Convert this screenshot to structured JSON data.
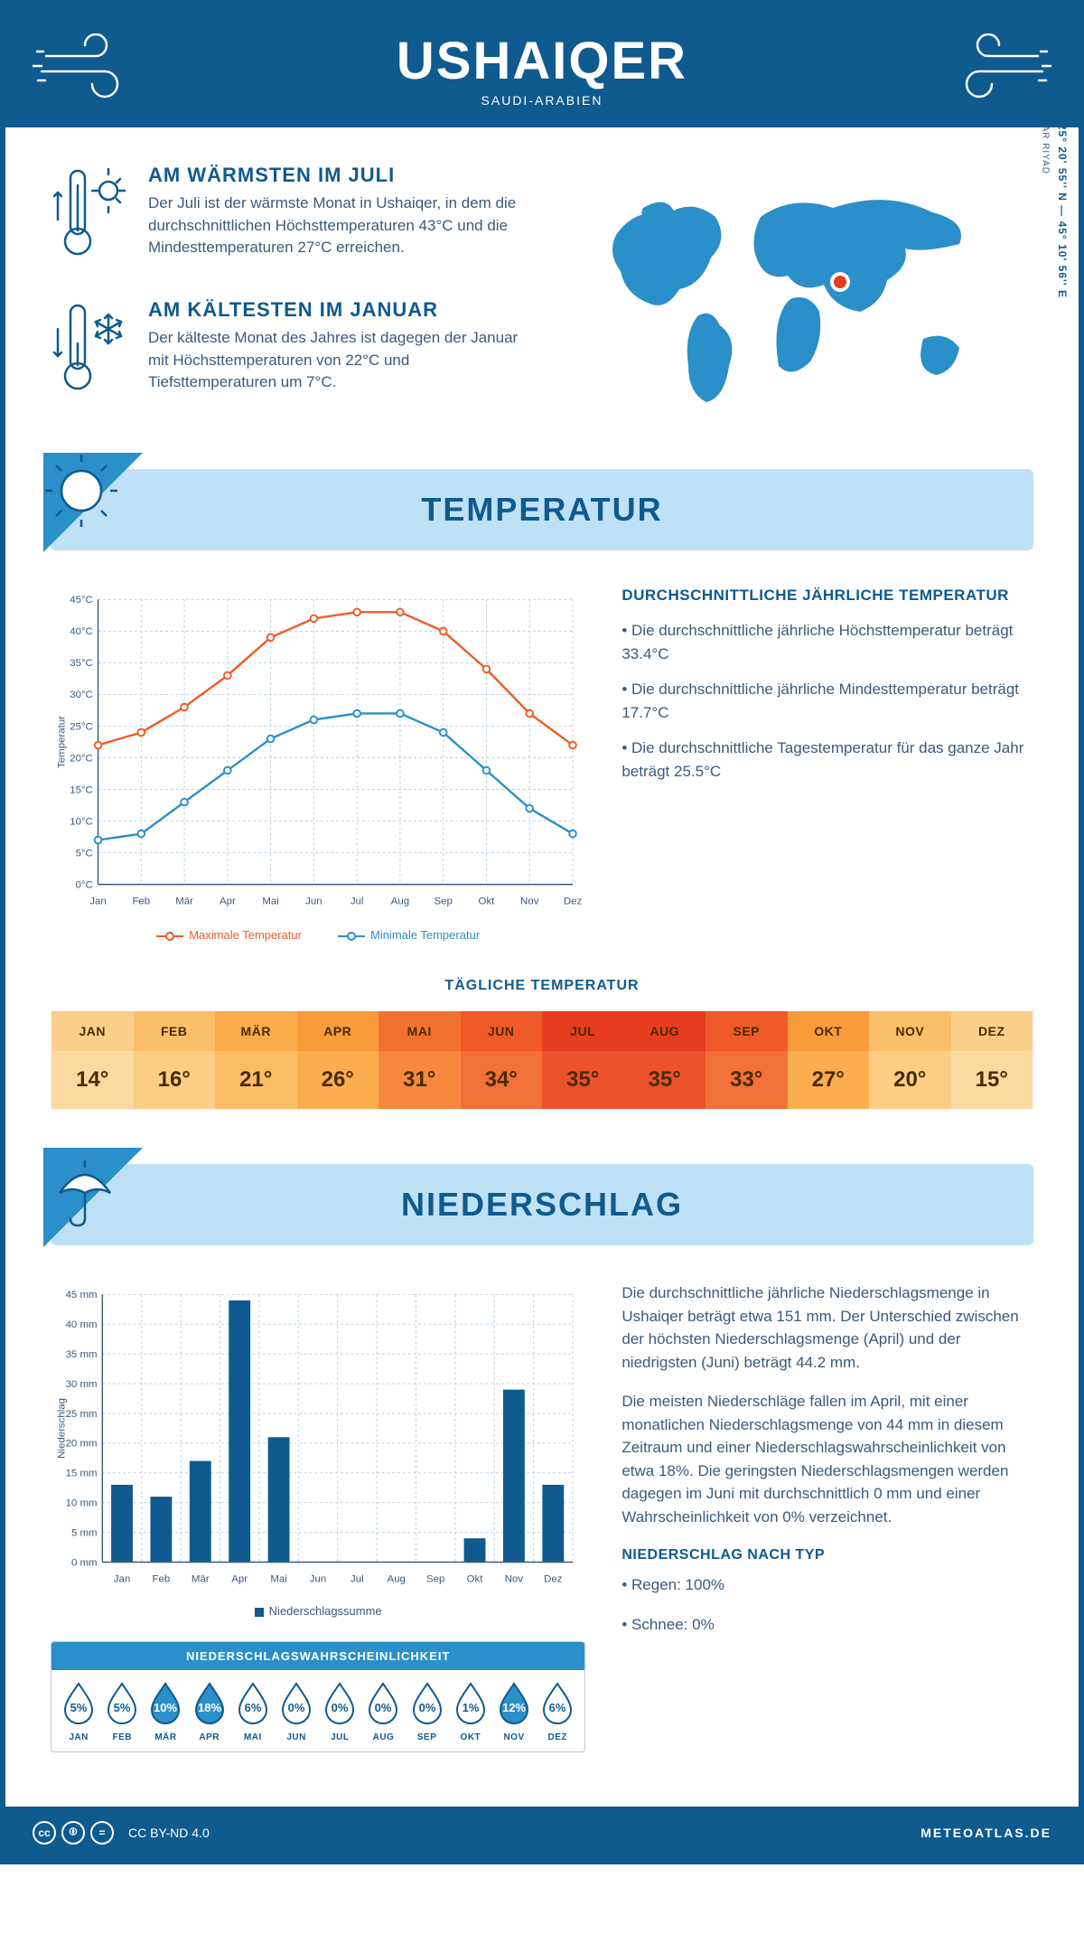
{
  "header": {
    "title": "USHAIQER",
    "subtitle": "SAUDI-ARABIEN"
  },
  "overview": {
    "warm": {
      "title": "AM WÄRMSTEN IM JULI",
      "text": "Der Juli ist der wärmste Monat in Ushaiqer, in dem die durchschnittlichen Höchsttemperaturen 43°C und die Mindesttemperaturen 27°C erreichen."
    },
    "cold": {
      "title": "AM KÄLTESTEN IM JANUAR",
      "text": "Der kälteste Monat des Jahres ist dagegen der Januar mit Höchsttemperaturen von 22°C und Tiefsttemperaturen um 7°C."
    },
    "coords": "25° 20' 55'' N — 45° 10' 56'' E",
    "region": "AR RIYAD",
    "map_land_color": "#2b8fc9",
    "pin_color": "#e63b1e"
  },
  "sections": {
    "temperature": "TEMPERATUR",
    "precipitation": "NIEDERSCHLAG"
  },
  "colors": {
    "brand": "#0f5a8f",
    "brand_light": "#2b8fc9",
    "sky": "#bfe1f5",
    "body": "#3b5a7a",
    "max_line": "#f15a24",
    "min_line": "#2b8fc9",
    "grid": "#b8cfe0"
  },
  "temp_chart": {
    "type": "line",
    "months": [
      "Jan",
      "Feb",
      "Mär",
      "Apr",
      "Mai",
      "Jun",
      "Jul",
      "Aug",
      "Sep",
      "Okt",
      "Nov",
      "Dez"
    ],
    "max_values": [
      22,
      24,
      28,
      33,
      39,
      42,
      43,
      43,
      40,
      34,
      27,
      22
    ],
    "min_values": [
      7,
      8,
      13,
      18,
      23,
      26,
      27,
      27,
      24,
      18,
      12,
      8
    ],
    "y_min": 0,
    "y_max": 45,
    "y_step": 5,
    "y_unit": "°C",
    "y_axis_label": "Temperatur",
    "legend_max": "Maximale Temperatur",
    "legend_min": "Minimale Temperatur",
    "max_color": "#f15a24",
    "min_color": "#2b8fc9",
    "grid_color": "#b8cfe0",
    "line_width": 2.5,
    "marker_size": 4
  },
  "temp_text": {
    "heading": "DURCHSCHNITTLICHE JÄHRLICHE TEMPERATUR",
    "b1": "• Die durchschnittliche jährliche Höchsttemperatur beträgt 33.4°C",
    "b2": "• Die durchschnittliche jährliche Mindesttemperatur beträgt 17.7°C",
    "b3": "• Die durchschnittliche Tagestemperatur für das ganze Jahr beträgt 25.5°C"
  },
  "daily_temp": {
    "title": "TÄGLICHE TEMPERATUR",
    "months": [
      "JAN",
      "FEB",
      "MÄR",
      "APR",
      "MAI",
      "JUN",
      "JUL",
      "AUG",
      "SEP",
      "OKT",
      "NOV",
      "DEZ"
    ],
    "values": [
      "14°",
      "16°",
      "21°",
      "26°",
      "31°",
      "34°",
      "35°",
      "35°",
      "33°",
      "27°",
      "20°",
      "15°"
    ],
    "header_colors": [
      "#fbcf8a",
      "#fbbf6a",
      "#faac4a",
      "#f99a3b",
      "#f3712f",
      "#ef5a28",
      "#e63b1e",
      "#e63b1e",
      "#ef5a28",
      "#f99a3b",
      "#fbbf6a",
      "#fbcf8a"
    ],
    "value_colors": [
      "#fcd9a0",
      "#fcce85",
      "#fbbd63",
      "#fbae4f",
      "#f6893d",
      "#f27138",
      "#ec522c",
      "#ec522c",
      "#f27138",
      "#fbae4f",
      "#fcce85",
      "#fcd9a0"
    ]
  },
  "prec_chart": {
    "type": "bar",
    "months": [
      "Jan",
      "Feb",
      "Mär",
      "Apr",
      "Mai",
      "Jun",
      "Jul",
      "Aug",
      "Sep",
      "Okt",
      "Nov",
      "Dez"
    ],
    "values_mm": [
      13,
      11,
      17,
      44,
      21,
      0,
      0,
      0,
      0,
      4,
      29,
      13
    ],
    "y_min": 0,
    "y_max": 45,
    "y_step": 5,
    "y_unit": " mm",
    "y_axis_label": "Niederschlag",
    "bar_color": "#0f5a8f",
    "legend": "Niederschlagssumme",
    "bar_width_ratio": 0.55,
    "grid_color": "#b8cfe0"
  },
  "prec_text": {
    "p1": "Die durchschnittliche jährliche Niederschlagsmenge in Ushaiqer beträgt etwa 151 mm. Der Unterschied zwischen der höchsten Niederschlagsmenge (April) und der niedrigsten (Juni) beträgt 44.2 mm.",
    "p2": "Die meisten Niederschläge fallen im April, mit einer monatlichen Niederschlagsmenge von 44 mm in diesem Zeitraum und einer Niederschlagswahrscheinlichkeit von etwa 18%. Die geringsten Niederschlagsmengen werden dagegen im Juni mit durchschnittlich 0 mm und einer Wahrscheinlichkeit von 0% verzeichnet.",
    "heading": "NIEDERSCHLAG NACH TYP",
    "rain": "• Regen: 100%",
    "snow": "• Schnee: 0%"
  },
  "probability": {
    "title": "NIEDERSCHLAGSWAHRSCHEINLICHKEIT",
    "months": [
      "JAN",
      "FEB",
      "MÄR",
      "APR",
      "MAI",
      "JUN",
      "JUL",
      "AUG",
      "SEP",
      "OKT",
      "NOV",
      "DEZ"
    ],
    "values": [
      "5%",
      "5%",
      "10%",
      "18%",
      "6%",
      "0%",
      "0%",
      "0%",
      "0%",
      "1%",
      "12%",
      "6%"
    ],
    "filled": [
      false,
      false,
      true,
      true,
      false,
      false,
      false,
      false,
      false,
      false,
      true,
      false
    ],
    "fill_color": "#2b8fc9",
    "stroke_color": "#0f5a8f"
  },
  "footer": {
    "license": "CC BY-ND 4.0",
    "site": "METEOATLAS.DE"
  }
}
